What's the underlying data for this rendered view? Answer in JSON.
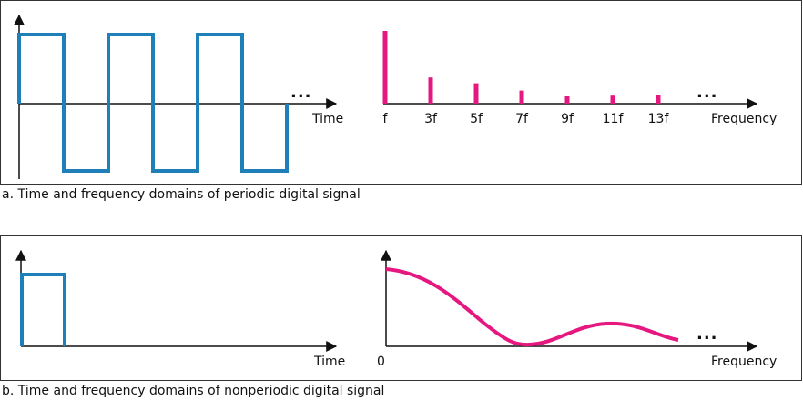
{
  "colors": {
    "time_signal": "#1f7fb8",
    "spectrum": "#e6177f",
    "axis": "#111111"
  },
  "panel_a": {
    "caption": "a. Time and frequency domains of periodic digital signal",
    "time_label": "Time",
    "freq_label": "Frequency",
    "ellipsis": "...",
    "harmonics": [
      {
        "label": "f",
        "amplitude": 1.0
      },
      {
        "label": "3f",
        "amplitude": 0.36
      },
      {
        "label": "5f",
        "amplitude": 0.28
      },
      {
        "label": "7f",
        "amplitude": 0.18
      },
      {
        "label": "9f",
        "amplitude": 0.1
      },
      {
        "label": "11f",
        "amplitude": 0.11
      },
      {
        "label": "13f",
        "amplitude": 0.12
      }
    ],
    "square_wave_periods": 3
  },
  "panel_b": {
    "caption": "b. Time and frequency domains of nonperiodic digital signal",
    "time_label": "Time",
    "freq_label": "Frequency",
    "origin_label": "0",
    "ellipsis": "..."
  }
}
